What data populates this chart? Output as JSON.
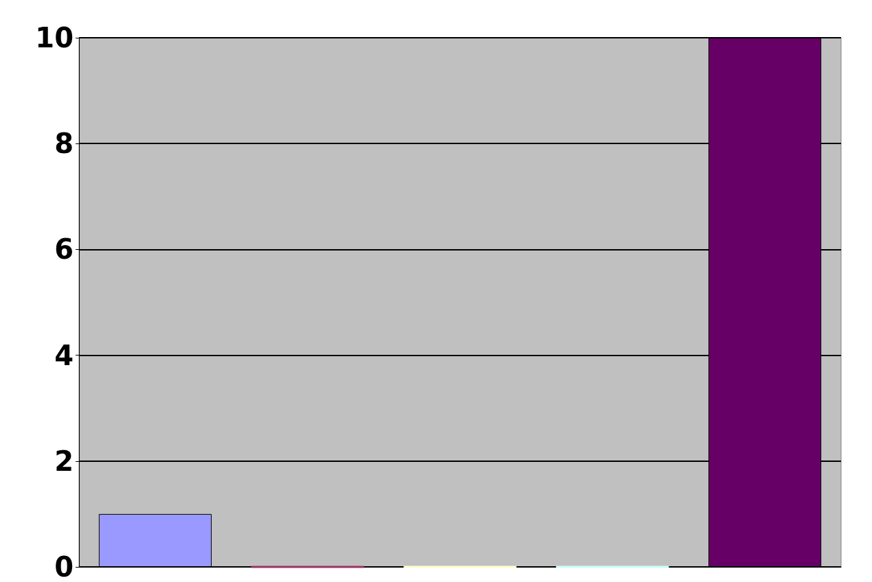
{
  "chart_data": {
    "type": "bar",
    "categories": [
      null,
      null,
      null,
      null,
      null
    ],
    "values": [
      1,
      0,
      0,
      0,
      10
    ],
    "colors": [
      "#9999ff",
      "#993366",
      "#ffffcc",
      "#ccffff",
      "#660066"
    ],
    "ylim": [
      0,
      10
    ],
    "yticks": [
      0,
      2,
      4,
      6,
      8,
      10
    ],
    "grid": "y"
  }
}
